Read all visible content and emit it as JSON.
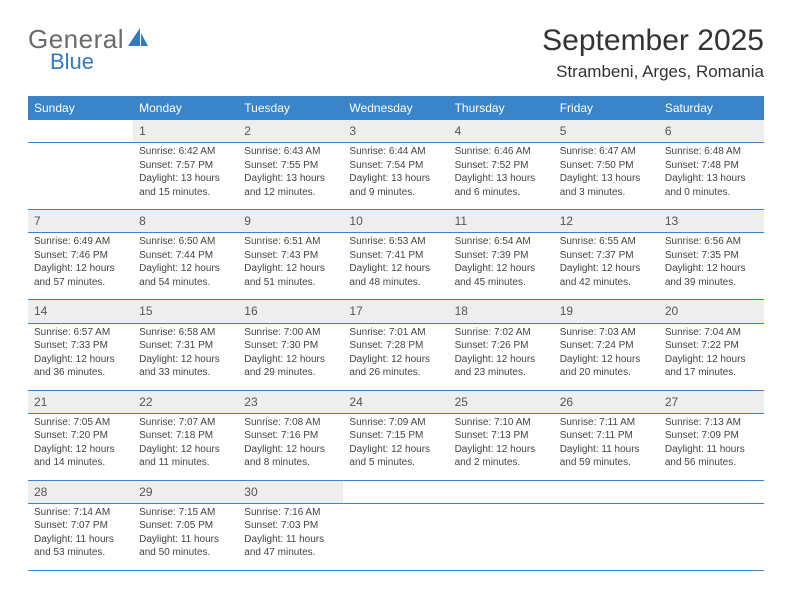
{
  "logo": {
    "text_general": "General",
    "text_blue": "Blue",
    "sail_color": "#2f7bbf"
  },
  "header": {
    "month_title": "September 2025",
    "location": "Strambeni, Arges, Romania"
  },
  "colors": {
    "header_bg": "#3a85c9",
    "header_text": "#ffffff",
    "daynum_bg": "#eeeeee",
    "border": "#3a85c9",
    "text": "#444444"
  },
  "weekdays": [
    "Sunday",
    "Monday",
    "Tuesday",
    "Wednesday",
    "Thursday",
    "Friday",
    "Saturday"
  ],
  "weeks": [
    [
      null,
      {
        "n": "1",
        "sr": "Sunrise: 6:42 AM",
        "ss": "Sunset: 7:57 PM",
        "d1": "Daylight: 13 hours",
        "d2": "and 15 minutes."
      },
      {
        "n": "2",
        "sr": "Sunrise: 6:43 AM",
        "ss": "Sunset: 7:55 PM",
        "d1": "Daylight: 13 hours",
        "d2": "and 12 minutes."
      },
      {
        "n": "3",
        "sr": "Sunrise: 6:44 AM",
        "ss": "Sunset: 7:54 PM",
        "d1": "Daylight: 13 hours",
        "d2": "and 9 minutes."
      },
      {
        "n": "4",
        "sr": "Sunrise: 6:46 AM",
        "ss": "Sunset: 7:52 PM",
        "d1": "Daylight: 13 hours",
        "d2": "and 6 minutes."
      },
      {
        "n": "5",
        "sr": "Sunrise: 6:47 AM",
        "ss": "Sunset: 7:50 PM",
        "d1": "Daylight: 13 hours",
        "d2": "and 3 minutes."
      },
      {
        "n": "6",
        "sr": "Sunrise: 6:48 AM",
        "ss": "Sunset: 7:48 PM",
        "d1": "Daylight: 13 hours",
        "d2": "and 0 minutes."
      }
    ],
    [
      {
        "n": "7",
        "sr": "Sunrise: 6:49 AM",
        "ss": "Sunset: 7:46 PM",
        "d1": "Daylight: 12 hours",
        "d2": "and 57 minutes."
      },
      {
        "n": "8",
        "sr": "Sunrise: 6:50 AM",
        "ss": "Sunset: 7:44 PM",
        "d1": "Daylight: 12 hours",
        "d2": "and 54 minutes."
      },
      {
        "n": "9",
        "sr": "Sunrise: 6:51 AM",
        "ss": "Sunset: 7:43 PM",
        "d1": "Daylight: 12 hours",
        "d2": "and 51 minutes."
      },
      {
        "n": "10",
        "sr": "Sunrise: 6:53 AM",
        "ss": "Sunset: 7:41 PM",
        "d1": "Daylight: 12 hours",
        "d2": "and 48 minutes."
      },
      {
        "n": "11",
        "sr": "Sunrise: 6:54 AM",
        "ss": "Sunset: 7:39 PM",
        "d1": "Daylight: 12 hours",
        "d2": "and 45 minutes."
      },
      {
        "n": "12",
        "sr": "Sunrise: 6:55 AM",
        "ss": "Sunset: 7:37 PM",
        "d1": "Daylight: 12 hours",
        "d2": "and 42 minutes."
      },
      {
        "n": "13",
        "sr": "Sunrise: 6:56 AM",
        "ss": "Sunset: 7:35 PM",
        "d1": "Daylight: 12 hours",
        "d2": "and 39 minutes."
      }
    ],
    [
      {
        "n": "14",
        "sr": "Sunrise: 6:57 AM",
        "ss": "Sunset: 7:33 PM",
        "d1": "Daylight: 12 hours",
        "d2": "and 36 minutes."
      },
      {
        "n": "15",
        "sr": "Sunrise: 6:58 AM",
        "ss": "Sunset: 7:31 PM",
        "d1": "Daylight: 12 hours",
        "d2": "and 33 minutes."
      },
      {
        "n": "16",
        "sr": "Sunrise: 7:00 AM",
        "ss": "Sunset: 7:30 PM",
        "d1": "Daylight: 12 hours",
        "d2": "and 29 minutes."
      },
      {
        "n": "17",
        "sr": "Sunrise: 7:01 AM",
        "ss": "Sunset: 7:28 PM",
        "d1": "Daylight: 12 hours",
        "d2": "and 26 minutes."
      },
      {
        "n": "18",
        "sr": "Sunrise: 7:02 AM",
        "ss": "Sunset: 7:26 PM",
        "d1": "Daylight: 12 hours",
        "d2": "and 23 minutes."
      },
      {
        "n": "19",
        "sr": "Sunrise: 7:03 AM",
        "ss": "Sunset: 7:24 PM",
        "d1": "Daylight: 12 hours",
        "d2": "and 20 minutes."
      },
      {
        "n": "20",
        "sr": "Sunrise: 7:04 AM",
        "ss": "Sunset: 7:22 PM",
        "d1": "Daylight: 12 hours",
        "d2": "and 17 minutes."
      }
    ],
    [
      {
        "n": "21",
        "sr": "Sunrise: 7:05 AM",
        "ss": "Sunset: 7:20 PM",
        "d1": "Daylight: 12 hours",
        "d2": "and 14 minutes."
      },
      {
        "n": "22",
        "sr": "Sunrise: 7:07 AM",
        "ss": "Sunset: 7:18 PM",
        "d1": "Daylight: 12 hours",
        "d2": "and 11 minutes."
      },
      {
        "n": "23",
        "sr": "Sunrise: 7:08 AM",
        "ss": "Sunset: 7:16 PM",
        "d1": "Daylight: 12 hours",
        "d2": "and 8 minutes."
      },
      {
        "n": "24",
        "sr": "Sunrise: 7:09 AM",
        "ss": "Sunset: 7:15 PM",
        "d1": "Daylight: 12 hours",
        "d2": "and 5 minutes."
      },
      {
        "n": "25",
        "sr": "Sunrise: 7:10 AM",
        "ss": "Sunset: 7:13 PM",
        "d1": "Daylight: 12 hours",
        "d2": "and 2 minutes."
      },
      {
        "n": "26",
        "sr": "Sunrise: 7:11 AM",
        "ss": "Sunset: 7:11 PM",
        "d1": "Daylight: 11 hours",
        "d2": "and 59 minutes."
      },
      {
        "n": "27",
        "sr": "Sunrise: 7:13 AM",
        "ss": "Sunset: 7:09 PM",
        "d1": "Daylight: 11 hours",
        "d2": "and 56 minutes."
      }
    ],
    [
      {
        "n": "28",
        "sr": "Sunrise: 7:14 AM",
        "ss": "Sunset: 7:07 PM",
        "d1": "Daylight: 11 hours",
        "d2": "and 53 minutes."
      },
      {
        "n": "29",
        "sr": "Sunrise: 7:15 AM",
        "ss": "Sunset: 7:05 PM",
        "d1": "Daylight: 11 hours",
        "d2": "and 50 minutes."
      },
      {
        "n": "30",
        "sr": "Sunrise: 7:16 AM",
        "ss": "Sunset: 7:03 PM",
        "d1": "Daylight: 11 hours",
        "d2": "and 47 minutes."
      },
      null,
      null,
      null,
      null
    ]
  ]
}
